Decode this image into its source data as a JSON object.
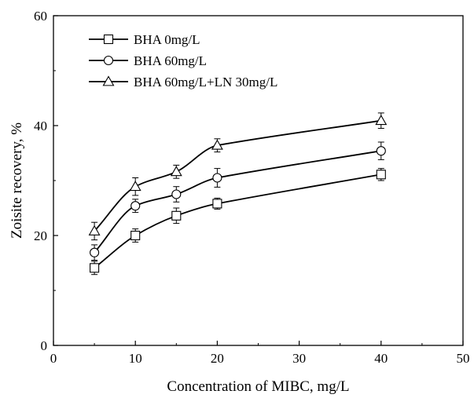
{
  "chart_data": {
    "type": "line",
    "xlabel": "Concentration of MIBC, mg/L",
    "ylabel": "Zoisite recovery, %",
    "xlim": [
      0,
      50
    ],
    "ylim": [
      0,
      60
    ],
    "xticks": [
      0,
      10,
      20,
      30,
      40,
      50
    ],
    "yticks": [
      0,
      20,
      40,
      60
    ],
    "grid": false,
    "legend_position": "top-left",
    "x": [
      5,
      10,
      15,
      20,
      40
    ],
    "series": [
      {
        "name": "BHA 0mg/L",
        "marker": "square",
        "values": [
          14.1,
          20.0,
          23.6,
          25.8,
          31.1
        ],
        "errors": [
          1.2,
          1.2,
          1.4,
          1.0,
          1.1
        ]
      },
      {
        "name": "BHA 60mg/L",
        "marker": "circle",
        "values": [
          16.9,
          25.4,
          27.5,
          30.5,
          35.4
        ],
        "errors": [
          1.4,
          1.2,
          1.4,
          1.7,
          1.6
        ]
      },
      {
        "name": "BHA 60mg/L+LN 30mg/L",
        "marker": "triangle",
        "values": [
          20.8,
          28.9,
          31.6,
          36.4,
          40.9
        ],
        "errors": [
          1.6,
          1.6,
          1.2,
          1.2,
          1.4
        ]
      }
    ],
    "colors": {
      "line": "#000000",
      "marker_fill": "#ffffff"
    }
  }
}
